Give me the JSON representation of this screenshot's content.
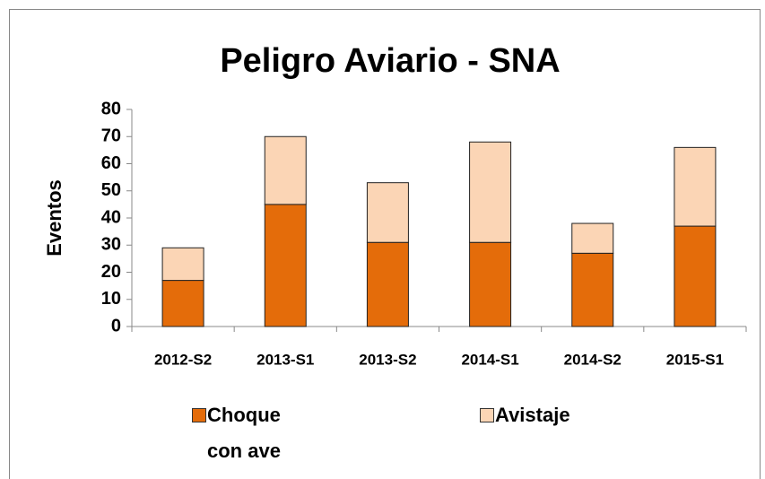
{
  "chart_data": {
    "type": "stacked_bar",
    "title": "Peligro Aviario - SNA",
    "y_label": "Eventos",
    "categories": [
      "2012-S2",
      "2013-S1",
      "2013-S2",
      "2014-S1",
      "2014-S2",
      "2015-S1"
    ],
    "series": [
      {
        "name": "Choque con ave",
        "color": "#e46c0a",
        "values": [
          17,
          45,
          31,
          31,
          27,
          37
        ]
      },
      {
        "name": "Avistaje",
        "color": "#fbd5b5",
        "values": [
          12,
          25,
          22,
          37,
          11,
          29
        ]
      }
    ],
    "ylim": [
      0,
      80
    ],
    "yticks": [
      0,
      10,
      20,
      30,
      40,
      50,
      60,
      70,
      80
    ],
    "grid": false,
    "legend": "bottom"
  }
}
